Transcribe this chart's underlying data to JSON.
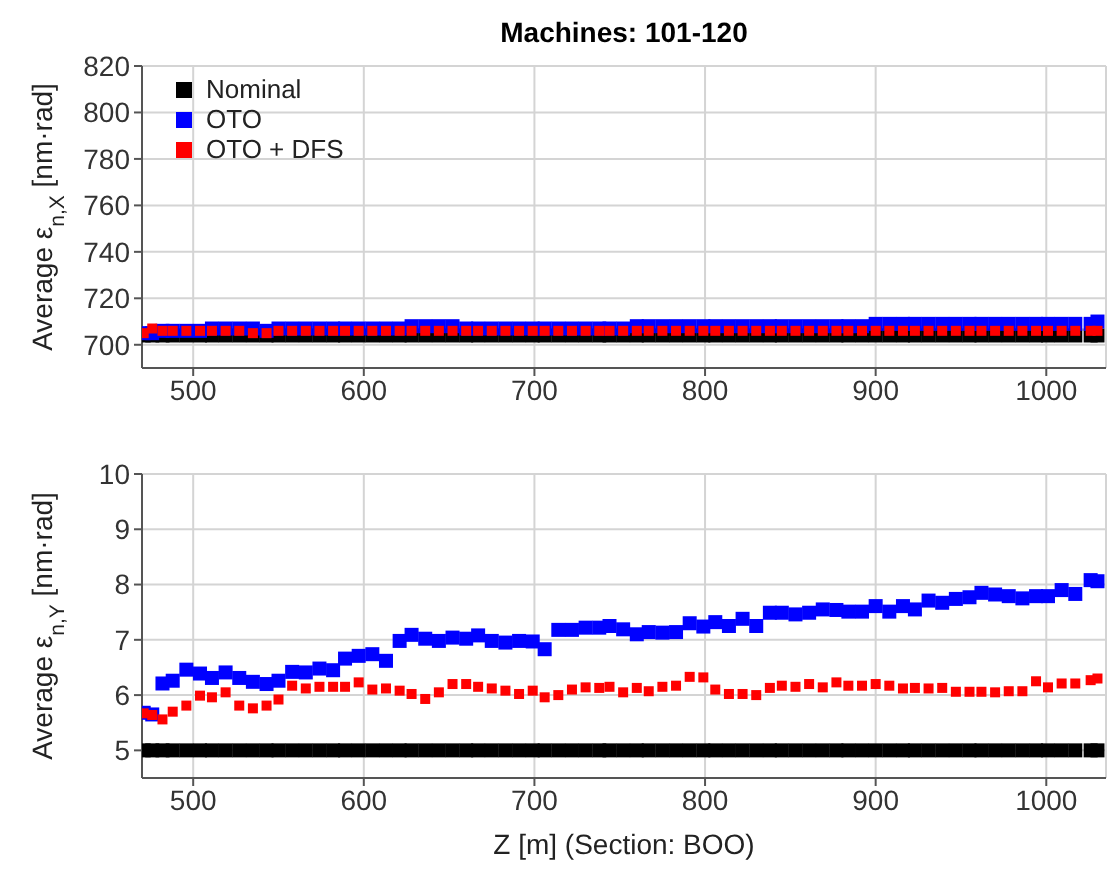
{
  "chart_data": [
    {
      "type": "scatter",
      "title": "Machines: 101-120",
      "ylabel": "Average ε$_{n,X}$ [nm·rad]",
      "xlim": [
        470,
        1035
      ],
      "xticks": [
        500,
        600,
        700,
        800,
        900,
        1000
      ],
      "ylim": [
        690,
        820
      ],
      "yticks": [
        700,
        720,
        740,
        760,
        780,
        800,
        820
      ],
      "grid": true,
      "legend": "top left",
      "marker": "square",
      "x": [
        471,
        476,
        482,
        488,
        496,
        504,
        511,
        519,
        527,
        535,
        543,
        550,
        558,
        566,
        574,
        582,
        589,
        597,
        605,
        613,
        621,
        628,
        636,
        644,
        652,
        660,
        667,
        675,
        683,
        691,
        699,
        706,
        714,
        722,
        730,
        738,
        744,
        752,
        760,
        767,
        775,
        783,
        791,
        799,
        806,
        814,
        822,
        830,
        838,
        845,
        853,
        861,
        869,
        877,
        884,
        892,
        900,
        908,
        916,
        923,
        931,
        939,
        947,
        955,
        962,
        970,
        978,
        986,
        994,
        1001,
        1009,
        1017,
        1026,
        1030
      ],
      "series": [
        {
          "name": "Nominal",
          "color": "#000000",
          "values": [
            704,
            704,
            704,
            704,
            704,
            704,
            704,
            704,
            704,
            704,
            704,
            704,
            704,
            704,
            704,
            704,
            704,
            704,
            704,
            704,
            704,
            704,
            704,
            704,
            704,
            704,
            704,
            704,
            704,
            704,
            704,
            704,
            704,
            704,
            704,
            704,
            704,
            704,
            704,
            704,
            704,
            704,
            704,
            704,
            704,
            704,
            704,
            704,
            704,
            704,
            704,
            704,
            704,
            704,
            704,
            704,
            704,
            704,
            704,
            704,
            704,
            704,
            704,
            704,
            704,
            704,
            704,
            704,
            704,
            704,
            704,
            704,
            704,
            704
          ]
        },
        {
          "name": "OTO",
          "color": "#0000ff",
          "values": [
            705,
            705,
            706,
            706,
            706,
            706,
            707,
            707,
            707,
            707,
            706,
            707,
            707,
            707,
            707,
            707,
            707,
            707,
            707,
            707,
            707,
            708,
            708,
            708,
            708,
            707,
            707,
            707,
            707,
            707,
            707,
            707,
            707,
            707,
            707,
            707,
            707,
            707,
            708,
            708,
            708,
            708,
            708,
            708,
            708,
            708,
            708,
            708,
            708,
            708,
            708,
            708,
            708,
            708,
            708,
            708,
            709,
            709,
            709,
            709,
            709,
            709,
            709,
            709,
            709,
            709,
            709,
            709,
            709,
            709,
            709,
            709,
            709,
            710
          ]
        },
        {
          "name": "OTO + DFS",
          "color": "#ff0000",
          "values": [
            705,
            707,
            706,
            706,
            706,
            706,
            706,
            706,
            706,
            705,
            705,
            706,
            706,
            706,
            706,
            706,
            706,
            706,
            706,
            706,
            706,
            706,
            706,
            706,
            706,
            706,
            706,
            706,
            706,
            706,
            706,
            706,
            706,
            706,
            706,
            706,
            706,
            706,
            706,
            706,
            706,
            706,
            706,
            706,
            706,
            706,
            706,
            706,
            706,
            706,
            706,
            706,
            706,
            706,
            706,
            706,
            706,
            706,
            706,
            706,
            706,
            706,
            706,
            706,
            706,
            706,
            706,
            706,
            706,
            706,
            706,
            706,
            706,
            706
          ]
        }
      ]
    },
    {
      "type": "scatter",
      "xlabel": "Z [m] (Section: BOO)",
      "ylabel": "Average ε$_{n,Y}$ [nm·rad]",
      "xlim": [
        470,
        1035
      ],
      "xticks": [
        500,
        600,
        700,
        800,
        900,
        1000
      ],
      "ylim": [
        4.5,
        10
      ],
      "yticks": [
        5,
        6,
        7,
        8,
        9,
        10
      ],
      "grid": true,
      "marker": "square",
      "x": [
        471,
        476,
        482,
        488,
        496,
        504,
        511,
        519,
        527,
        535,
        543,
        550,
        558,
        566,
        574,
        582,
        589,
        597,
        605,
        613,
        621,
        628,
        636,
        644,
        652,
        660,
        667,
        675,
        683,
        691,
        699,
        706,
        714,
        722,
        730,
        738,
        744,
        752,
        760,
        767,
        775,
        783,
        791,
        799,
        806,
        814,
        822,
        830,
        838,
        845,
        853,
        861,
        869,
        877,
        884,
        892,
        900,
        908,
        916,
        923,
        931,
        939,
        947,
        955,
        962,
        970,
        978,
        986,
        994,
        1001,
        1009,
        1017,
        1026,
        1030
      ],
      "series": [
        {
          "color": "#000000",
          "values": [
            5,
            5,
            5,
            5,
            5,
            5,
            5,
            5,
            5,
            5,
            5,
            5,
            5,
            5,
            5,
            5,
            5,
            5,
            5,
            5,
            5,
            5,
            5,
            5,
            5,
            5,
            5,
            5,
            5,
            5,
            5,
            5,
            5,
            5,
            5,
            5,
            5,
            5,
            5,
            5,
            5,
            5,
            5,
            5,
            5,
            5,
            5,
            5,
            5,
            5,
            5,
            5,
            5,
            5,
            5,
            5,
            5,
            5,
            5,
            5,
            5,
            5,
            5,
            5,
            5,
            5,
            5,
            5,
            5,
            5,
            5,
            5,
            5,
            5
          ]
        },
        {
          "color": "#0000ff",
          "values": [
            5.68,
            5.65,
            6.21,
            6.26,
            6.46,
            6.39,
            6.31,
            6.41,
            6.31,
            6.24,
            6.2,
            6.26,
            6.42,
            6.41,
            6.48,
            6.45,
            6.66,
            6.71,
            6.74,
            6.62,
            6.98,
            7.09,
            7.02,
            6.98,
            7.04,
            7.02,
            7.08,
            6.98,
            6.95,
            6.98,
            6.97,
            6.83,
            7.18,
            7.18,
            7.22,
            7.22,
            7.25,
            7.19,
            7.1,
            7.14,
            7.13,
            7.14,
            7.3,
            7.24,
            7.32,
            7.25,
            7.38,
            7.25,
            7.49,
            7.49,
            7.46,
            7.49,
            7.55,
            7.54,
            7.51,
            7.51,
            7.61,
            7.51,
            7.61,
            7.55,
            7.71,
            7.67,
            7.74,
            7.77,
            7.85,
            7.82,
            7.79,
            7.75,
            7.79,
            7.79,
            7.9,
            7.83,
            8.08,
            8.06
          ]
        },
        {
          "color": "#ff0000",
          "values": [
            5.67,
            5.64,
            5.56,
            5.7,
            5.81,
            5.99,
            5.96,
            6.05,
            5.81,
            5.76,
            5.81,
            5.92,
            6.17,
            6.12,
            6.15,
            6.15,
            6.15,
            6.23,
            6.1,
            6.12,
            6.08,
            6.02,
            5.93,
            6.05,
            6.2,
            6.2,
            6.15,
            6.12,
            6.08,
            6.02,
            6.08,
            5.96,
            6,
            6.1,
            6.14,
            6.13,
            6.15,
            6.05,
            6.13,
            6.07,
            6.15,
            6.17,
            6.33,
            6.32,
            6.1,
            6.02,
            6.02,
            6,
            6.13,
            6.17,
            6.15,
            6.2,
            6.14,
            6.23,
            6.17,
            6.17,
            6.2,
            6.17,
            6.12,
            6.13,
            6.12,
            6.13,
            6.06,
            6.06,
            6.06,
            6.05,
            6.07,
            6.07,
            6.25,
            6.14,
            6.21,
            6.21,
            6.27,
            6.3
          ]
        }
      ]
    }
  ]
}
